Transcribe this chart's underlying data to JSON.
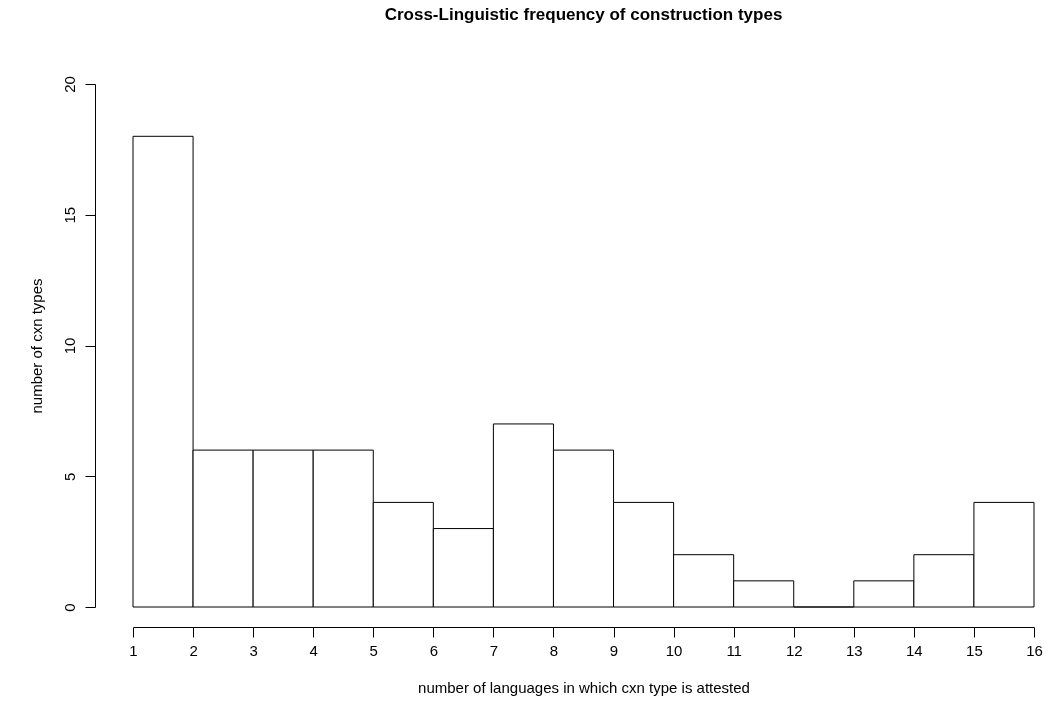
{
  "chart_data": {
    "type": "histogram",
    "title": "Cross-Linguistic frequency of construction types",
    "xlabel": "number of languages in which cxn type is attested",
    "ylabel": "number of cxn types",
    "bins": [
      1,
      2,
      3,
      4,
      5,
      6,
      7,
      8,
      9,
      10,
      11,
      12,
      13,
      14,
      15,
      16
    ],
    "values": [
      18,
      6,
      6,
      6,
      4,
      3,
      7,
      6,
      4,
      2,
      1,
      0,
      1,
      2,
      4
    ],
    "xlim": [
      1,
      16
    ],
    "xticks": [
      1,
      2,
      3,
      4,
      5,
      6,
      7,
      8,
      9,
      10,
      11,
      12,
      13,
      14,
      15,
      16
    ],
    "ylim": [
      0,
      20
    ],
    "yticks": [
      0,
      5,
      10,
      15,
      20
    ]
  }
}
